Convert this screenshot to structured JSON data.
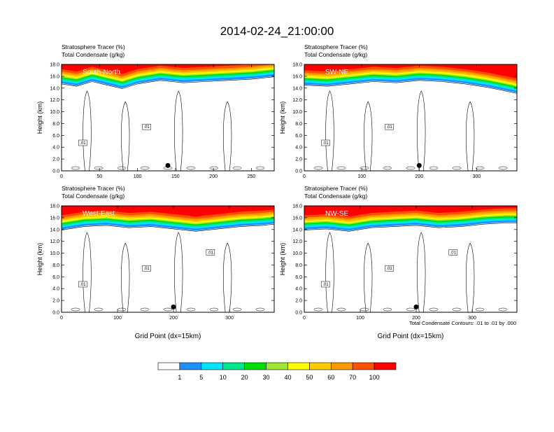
{
  "title": "2014-02-24_21:00:00",
  "footer_note": "Total Condensate Contours: .01 to .01 by .000",
  "colorbar": {
    "labels": [
      "1",
      "5",
      "10",
      "20",
      "30",
      "40",
      "50",
      "60",
      "70",
      "100"
    ],
    "colors": [
      "#ffffff",
      "#1e90ff",
      "#00e5ff",
      "#00e68c",
      "#00e000",
      "#a0e632",
      "#ffff00",
      "#ffcc00",
      "#ff9900",
      "#ff5000",
      "#ff0000"
    ]
  },
  "chart_data": [
    {
      "type": "heatmap",
      "title": "South-North",
      "header_lines": [
        "Stratosphere Tracer   (%)",
        "Total Condensate   (g/kg)"
      ],
      "ylabel": "Height (km)",
      "xlabel": "",
      "xlim": [
        0,
        280
      ],
      "ylim": [
        0,
        18
      ],
      "xticks": [
        "0",
        "50",
        "100",
        "150",
        "200",
        "250"
      ],
      "xtick_values": [
        0,
        50,
        100,
        150,
        200,
        250
      ],
      "yticks": [
        "0.0",
        "2.0",
        "4.0",
        "6.0",
        "8.0",
        "10.0",
        "12.0",
        "14.0",
        "16.0",
        "18.0"
      ],
      "marker_x": 140,
      "contour_labels": [
        ".01",
        ".01"
      ],
      "tracer_top": [
        {
          "x": 0,
          "y": 14.8
        },
        {
          "x": 20,
          "y": 14.4
        },
        {
          "x": 40,
          "y": 15.2
        },
        {
          "x": 60,
          "y": 14.6
        },
        {
          "x": 80,
          "y": 14.0
        },
        {
          "x": 100,
          "y": 14.8
        },
        {
          "x": 130,
          "y": 15.4
        },
        {
          "x": 160,
          "y": 15.0
        },
        {
          "x": 190,
          "y": 15.2
        },
        {
          "x": 220,
          "y": 15.4
        },
        {
          "x": 250,
          "y": 15.6
        },
        {
          "x": 265,
          "y": 15.8
        },
        {
          "x": 280,
          "y": 16.0
        }
      ]
    },
    {
      "type": "heatmap",
      "title": "SW-NE",
      "header_lines": [
        "Stratosphere Tracer   (%)",
        "Total Condensate   (g/kg)"
      ],
      "ylabel": "Height (km)",
      "xlabel": "",
      "xlim": [
        0,
        370
      ],
      "ylim": [
        0,
        18
      ],
      "xticks": [
        "0",
        "100",
        "200",
        "300"
      ],
      "xtick_values": [
        0,
        100,
        200,
        300
      ],
      "yticks": [
        "0.0",
        "2.0",
        "4.0",
        "6.0",
        "8.0",
        "10.0",
        "12.0",
        "14.0",
        "16.0",
        "18.0"
      ],
      "marker_x": 200,
      "contour_labels": [
        ".01",
        ".01"
      ],
      "tracer_top": [
        {
          "x": 0,
          "y": 14.6
        },
        {
          "x": 40,
          "y": 14.4
        },
        {
          "x": 80,
          "y": 14.8
        },
        {
          "x": 120,
          "y": 15.2
        },
        {
          "x": 160,
          "y": 15.0
        },
        {
          "x": 200,
          "y": 15.4
        },
        {
          "x": 240,
          "y": 15.2
        },
        {
          "x": 280,
          "y": 14.8
        },
        {
          "x": 320,
          "y": 14.2
        },
        {
          "x": 350,
          "y": 13.6
        },
        {
          "x": 370,
          "y": 13.2
        }
      ]
    },
    {
      "type": "heatmap",
      "title": "West-East",
      "header_lines": [
        "Stratosphere Tracer   (%)",
        "Total Condensate   (g/kg)"
      ],
      "ylabel": "Height (km)",
      "xlabel": "Grid Point (dx=15km)",
      "xlim": [
        0,
        380
      ],
      "ylim": [
        0,
        18
      ],
      "xticks": [
        "0",
        "100",
        "200",
        "300"
      ],
      "xtick_values": [
        0,
        100,
        200,
        300
      ],
      "yticks": [
        "0.0",
        "2.0",
        "4.0",
        "6.0",
        "8.0",
        "10.0",
        "12.0",
        "14.0",
        "16.0",
        "18.0"
      ],
      "marker_x": 200,
      "contour_labels": [
        ".01",
        ".01",
        ".01"
      ],
      "tracer_top": [
        {
          "x": 0,
          "y": 14.0
        },
        {
          "x": 40,
          "y": 14.6
        },
        {
          "x": 80,
          "y": 14.8
        },
        {
          "x": 120,
          "y": 14.4
        },
        {
          "x": 160,
          "y": 14.6
        },
        {
          "x": 200,
          "y": 14.2
        },
        {
          "x": 240,
          "y": 13.8
        },
        {
          "x": 280,
          "y": 14.2
        },
        {
          "x": 320,
          "y": 14.6
        },
        {
          "x": 360,
          "y": 14.8
        },
        {
          "x": 380,
          "y": 15.0
        }
      ]
    },
    {
      "type": "heatmap",
      "title": "NW-SE",
      "header_lines": [
        "Stratosphere Tracer   (%)",
        "Total Condensate   (g/kg)"
      ],
      "ylabel": "Height (km)",
      "xlabel": "Grid Point (dx=15km)",
      "xlim": [
        0,
        380
      ],
      "ylim": [
        0,
        18
      ],
      "xticks": [
        "0",
        "100",
        "200",
        "300"
      ],
      "xtick_values": [
        0,
        100,
        200,
        300
      ],
      "yticks": [
        "0.0",
        "2.0",
        "4.0",
        "6.0",
        "8.0",
        "10.0",
        "12.0",
        "14.0",
        "16.0",
        "18.0"
      ],
      "marker_x": 200,
      "contour_labels": [
        ".01",
        ".01",
        ".01"
      ],
      "tracer_top": [
        {
          "x": 0,
          "y": 14.0
        },
        {
          "x": 40,
          "y": 14.2
        },
        {
          "x": 80,
          "y": 13.8
        },
        {
          "x": 120,
          "y": 14.4
        },
        {
          "x": 160,
          "y": 14.6
        },
        {
          "x": 200,
          "y": 14.8
        },
        {
          "x": 240,
          "y": 14.4
        },
        {
          "x": 280,
          "y": 14.6
        },
        {
          "x": 320,
          "y": 15.0
        },
        {
          "x": 360,
          "y": 15.2
        },
        {
          "x": 380,
          "y": 15.2
        }
      ]
    }
  ]
}
